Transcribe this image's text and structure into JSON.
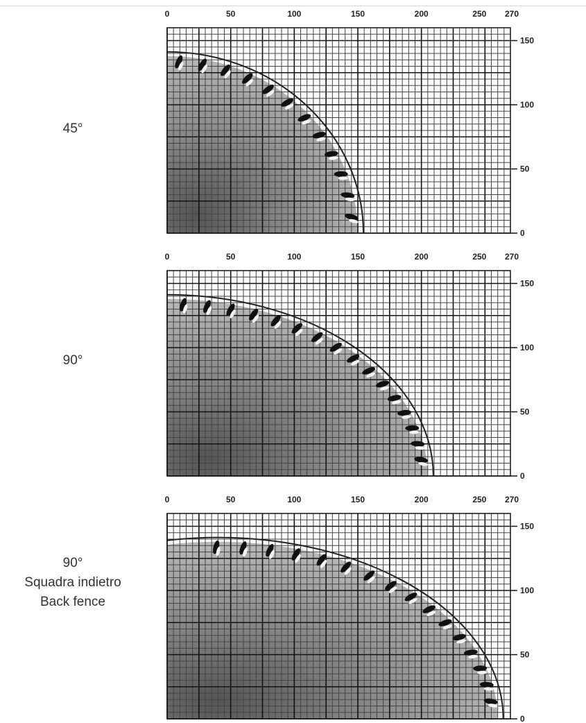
{
  "chart_data": [
    {
      "type": "diagram",
      "label": [
        "45°"
      ],
      "x_ticks": [
        "0",
        "50",
        "100",
        "150",
        "200",
        "250",
        "270"
      ],
      "x_tick_values": [
        0,
        50,
        100,
        150,
        200,
        250,
        270
      ],
      "y_ticks": [
        "150",
        "100",
        "50",
        "0"
      ],
      "y_tick_values": [
        150,
        100,
        50,
        0
      ],
      "xlim": [
        0,
        270
      ],
      "ylim": [
        0,
        160
      ],
      "cut_radius_x": 150,
      "cut_radius_y": 138
    },
    {
      "type": "diagram",
      "label": [
        "90°"
      ],
      "x_ticks": [
        "0",
        "50",
        "100",
        "150",
        "200",
        "250",
        "270"
      ],
      "x_tick_values": [
        0,
        50,
        100,
        150,
        200,
        250,
        270
      ],
      "y_ticks": [
        "150",
        "100",
        "50",
        "0"
      ],
      "y_tick_values": [
        150,
        100,
        50,
        0
      ],
      "xlim": [
        0,
        270
      ],
      "ylim": [
        0,
        160
      ],
      "cut_radius_x": 205,
      "cut_radius_y": 138
    },
    {
      "type": "diagram",
      "label": [
        "90°",
        "Squadra indietro",
        "Back fence"
      ],
      "x_ticks": [
        "0",
        "50",
        "100",
        "150",
        "200",
        "250",
        "270"
      ],
      "x_tick_values": [
        0,
        50,
        100,
        150,
        200,
        250,
        270
      ],
      "y_ticks": [
        "150",
        "100",
        "50",
        "0"
      ],
      "y_tick_values": [
        150,
        100,
        50,
        0
      ],
      "xlim": [
        0,
        270
      ],
      "ylim": [
        0,
        160
      ],
      "cut_radius_x": 260,
      "cut_radius_y": 138,
      "center_x": 40
    }
  ]
}
